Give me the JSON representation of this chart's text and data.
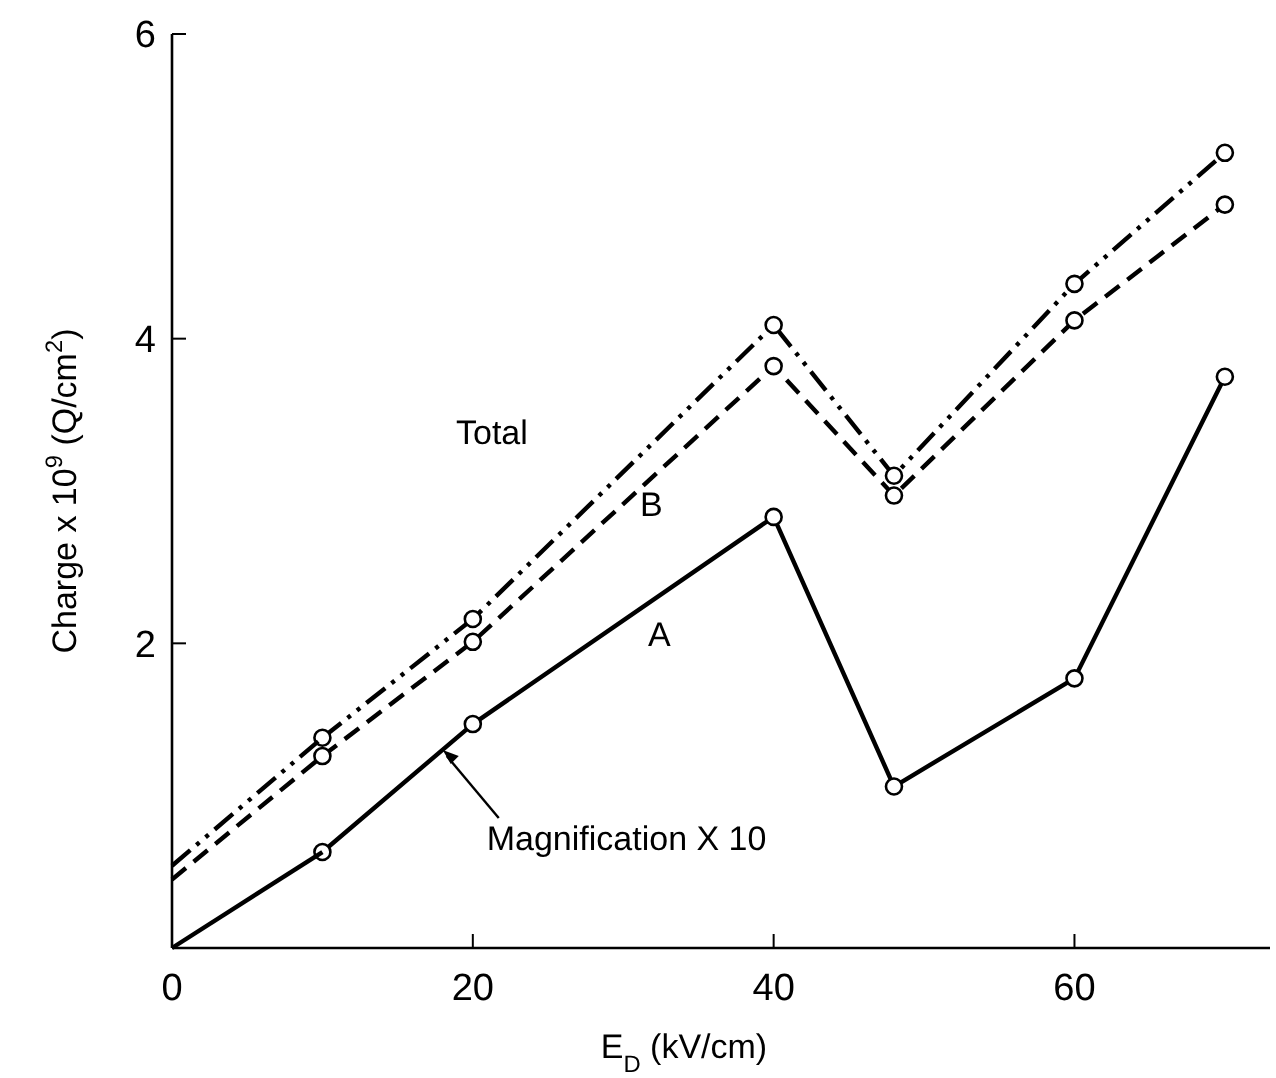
{
  "chart_data": {
    "type": "line",
    "xlabel": "E$_{D}$ (kV/cm)",
    "ylabel": "Charge x 10$^{9}$ (Q/cm$^{2}$)",
    "xlim": [
      0,
      73
    ],
    "xticks": [
      0,
      20,
      40,
      60
    ],
    "ylim": [
      0,
      6
    ],
    "yticks": [
      {
        "value": 0,
        "label": null
      },
      2,
      4,
      6
    ],
    "grid": false,
    "series": [
      {
        "name": "Total",
        "color": "#000000",
        "x": [
          10,
          20,
          40,
          48,
          60,
          70
        ],
        "values": [
          1.38,
          2.16,
          4.09,
          3.1,
          4.36,
          5.22
        ],
        "line_style": "dashdotdot",
        "marker": "circle"
      },
      {
        "name": "B",
        "color": "#000000",
        "x": [
          10,
          20,
          40,
          48,
          60,
          70
        ],
        "values": [
          1.26,
          2.01,
          3.82,
          2.97,
          4.12,
          4.88
        ],
        "line_style": "dashed",
        "marker": "circle"
      },
      {
        "name": "A",
        "color": "#000000",
        "x": [
          10,
          20,
          40,
          48,
          60,
          70
        ],
        "values": [
          0.63,
          1.47,
          2.83,
          1.06,
          1.77,
          3.75
        ],
        "line_style": "solid",
        "marker": "circle"
      },
      {
        "type": "line",
        "color": "#000000",
        "x": [
          0,
          10
        ],
        "values": [
          0.54,
          1.38
        ],
        "line_style": "dashdotdot",
        "marker": "none"
      },
      {
        "type": "line",
        "color": "#000000",
        "x": [
          0,
          10
        ],
        "values": [
          0.45,
          1.26
        ],
        "line_style": "dashed",
        "marker": "none"
      },
      {
        "type": "line",
        "color": "#000000",
        "x": [
          0,
          10
        ],
        "values": [
          0,
          0.63
        ],
        "line_style": "solid",
        "marker": "none"
      }
    ],
    "annotations": [
      {
        "text": "Magnification X 10",
        "x": 18,
        "y": 1.3
      }
    ]
  }
}
